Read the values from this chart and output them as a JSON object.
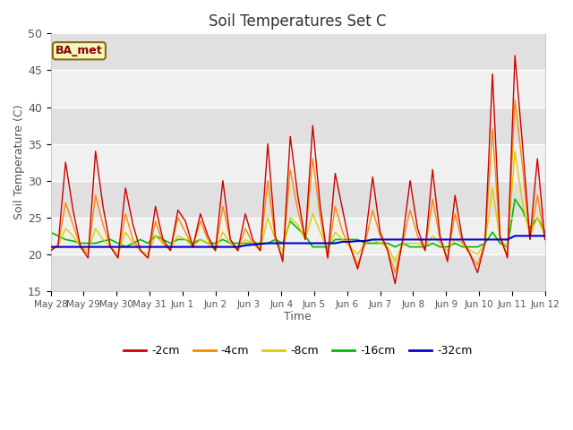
{
  "title": "Soil Temperatures Set C",
  "xlabel": "Time",
  "ylabel": "Soil Temperature (C)",
  "annotation": "BA_met",
  "ylim": [
    15,
    50
  ],
  "colors": {
    "-2cm": "#cc0000",
    "-4cm": "#ff8800",
    "-8cm": "#ddcc00",
    "-16cm": "#00bb00",
    "-32cm": "#0000cc"
  },
  "bg_color_light": "#f0f0f0",
  "bg_color_dark": "#e0e0e0",
  "legend_labels": [
    "-2cm",
    "-4cm",
    "-8cm",
    "-16cm",
    "-32cm"
  ],
  "x_tick_labels": [
    "May 28",
    "May 29",
    "May 30",
    "May 31",
    "Jun 1",
    "Jun 2",
    "Jun 3",
    "Jun 4",
    "Jun 5",
    "Jun 6",
    "Jun 7",
    "Jun 8",
    "Jun 9",
    "Jun 10",
    "Jun 11",
    "Jun 12"
  ],
  "data_2cm": [
    20.5,
    21.2,
    32.5,
    26.0,
    21.0,
    19.5,
    34.0,
    26.5,
    21.0,
    19.5,
    29.0,
    24.0,
    20.5,
    19.5,
    26.5,
    22.0,
    20.5,
    26.0,
    24.5,
    21.0,
    25.5,
    22.5,
    20.5,
    30.0,
    22.0,
    20.5,
    25.5,
    22.0,
    20.5,
    35.0,
    22.5,
    19.0,
    36.0,
    28.0,
    22.0,
    37.5,
    26.5,
    19.5,
    31.0,
    26.0,
    21.0,
    18.0,
    22.0,
    30.5,
    23.0,
    20.5,
    16.0,
    22.0,
    30.0,
    23.5,
    20.5,
    31.5,
    22.5,
    19.0,
    28.0,
    22.0,
    20.0,
    17.5,
    21.5,
    44.5,
    22.5,
    19.5,
    47.0,
    35.0,
    22.0,
    33.0,
    22.0
  ],
  "data_4cm": [
    20.5,
    21.2,
    27.0,
    24.0,
    21.0,
    20.0,
    28.0,
    24.0,
    21.0,
    19.5,
    25.5,
    22.0,
    20.5,
    19.5,
    24.5,
    21.5,
    20.5,
    25.0,
    23.0,
    21.0,
    24.5,
    22.0,
    20.5,
    26.5,
    22.0,
    20.5,
    23.5,
    21.5,
    20.5,
    30.0,
    22.0,
    19.5,
    31.5,
    26.0,
    22.0,
    33.0,
    25.0,
    19.5,
    26.5,
    23.0,
    21.0,
    18.5,
    21.5,
    26.0,
    22.5,
    20.5,
    17.5,
    21.5,
    26.0,
    22.5,
    20.5,
    27.5,
    22.0,
    19.5,
    25.5,
    21.5,
    20.0,
    18.5,
    21.5,
    37.0,
    22.0,
    20.0,
    41.0,
    32.0,
    22.0,
    28.0,
    22.0
  ],
  "data_8cm": [
    20.5,
    21.2,
    23.5,
    22.5,
    21.0,
    20.5,
    23.5,
    22.0,
    21.0,
    20.0,
    23.0,
    21.5,
    20.5,
    20.0,
    22.5,
    21.5,
    21.0,
    22.5,
    22.0,
    21.0,
    22.0,
    21.5,
    20.5,
    23.0,
    21.5,
    20.5,
    22.0,
    21.5,
    20.5,
    25.0,
    22.0,
    20.5,
    25.0,
    24.0,
    22.0,
    25.5,
    23.0,
    20.5,
    23.0,
    22.0,
    21.0,
    20.0,
    21.5,
    22.0,
    21.5,
    21.0,
    19.0,
    21.5,
    21.5,
    21.5,
    21.0,
    22.5,
    21.5,
    20.5,
    22.0,
    21.5,
    20.5,
    20.0,
    21.5,
    29.0,
    22.0,
    21.0,
    34.0,
    27.0,
    22.5,
    25.0,
    22.5
  ],
  "data_16cm": [
    23.0,
    22.5,
    22.0,
    21.8,
    21.5,
    21.5,
    21.5,
    21.8,
    22.0,
    21.5,
    21.0,
    21.5,
    22.0,
    21.5,
    22.5,
    22.0,
    21.5,
    22.0,
    22.0,
    21.5,
    22.0,
    21.5,
    21.5,
    22.0,
    21.5,
    21.5,
    21.5,
    21.5,
    21.5,
    21.5,
    22.0,
    21.5,
    24.5,
    23.5,
    22.5,
    21.0,
    21.0,
    21.0,
    22.0,
    22.0,
    22.0,
    22.0,
    21.5,
    21.5,
    21.5,
    21.5,
    21.0,
    21.5,
    21.0,
    21.0,
    21.0,
    21.5,
    21.0,
    21.0,
    21.5,
    21.0,
    21.0,
    21.0,
    21.5,
    23.0,
    21.5,
    21.0,
    27.5,
    26.0,
    23.5,
    25.0,
    23.0
  ],
  "data_32cm": [
    21.0,
    21.0,
    21.0,
    21.0,
    21.0,
    21.0,
    21.0,
    21.0,
    21.0,
    21.0,
    21.0,
    21.0,
    21.0,
    21.0,
    21.0,
    21.0,
    21.0,
    21.0,
    21.0,
    21.0,
    21.0,
    21.0,
    21.0,
    21.0,
    21.0,
    21.0,
    21.2,
    21.3,
    21.4,
    21.5,
    21.5,
    21.5,
    21.5,
    21.5,
    21.5,
    21.5,
    21.5,
    21.5,
    21.5,
    21.7,
    21.7,
    21.8,
    21.8,
    22.0,
    22.0,
    22.0,
    22.0,
    22.0,
    22.0,
    22.0,
    22.0,
    22.0,
    22.0,
    22.0,
    22.0,
    22.0,
    22.0,
    22.0,
    22.0,
    22.0,
    22.0,
    22.0,
    22.5,
    22.5,
    22.5,
    22.5,
    22.5
  ]
}
